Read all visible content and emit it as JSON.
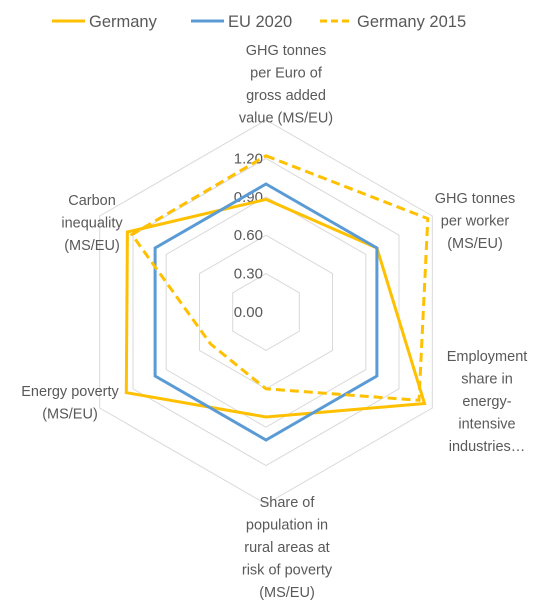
{
  "chart_data": {
    "type": "radar",
    "axes": [
      "GHG tonnes per Euro of gross added value (MS/EU)",
      "GHG tonnes per worker (MS/EU)",
      "Employment share in energy-intensive industries…",
      "Share of population in rural areas at risk of poverty (MS/EU)",
      "Energy poverty (MS/EU)",
      "Carbon inequality (MS/EU)"
    ],
    "axis_label_lines": [
      [
        "GHG tonnes",
        "per Euro of",
        "gross added",
        "value (MS/EU)"
      ],
      [
        "GHG tonnes",
        "per worker",
        "(MS/EU)"
      ],
      [
        "Employment",
        "share in",
        "energy-",
        "intensive",
        "industries…"
      ],
      [
        "Share of",
        "population in",
        "rural areas at",
        "risk of poverty",
        "(MS/EU)"
      ],
      [
        "Energy poverty",
        "(MS/EU)"
      ],
      [
        "Carbon",
        "inequality",
        "(MS/EU)"
      ]
    ],
    "rlim": [
      0,
      1.5
    ],
    "ticks": [
      0.0,
      0.3,
      0.6,
      0.9,
      1.2
    ],
    "tick_labels": [
      "0.00",
      "0.30",
      "0.60",
      "0.90",
      "1.20"
    ],
    "grid": true,
    "legend_position": "top",
    "series": [
      {
        "name": "Germany",
        "color": "#FFC000",
        "dash": "solid",
        "values": [
          0.88,
          1.0,
          1.43,
          0.82,
          1.26,
          1.25
        ]
      },
      {
        "name": "EU 2020",
        "color": "#5B9BD5",
        "dash": "solid",
        "values": [
          1.0,
          1.0,
          1.0,
          1.0,
          1.0,
          1.0
        ]
      },
      {
        "name": "Germany 2015",
        "color": "#FFC000",
        "dash": "dashed",
        "values": [
          1.22,
          1.46,
          1.38,
          0.6,
          0.5,
          1.21
        ]
      }
    ]
  }
}
